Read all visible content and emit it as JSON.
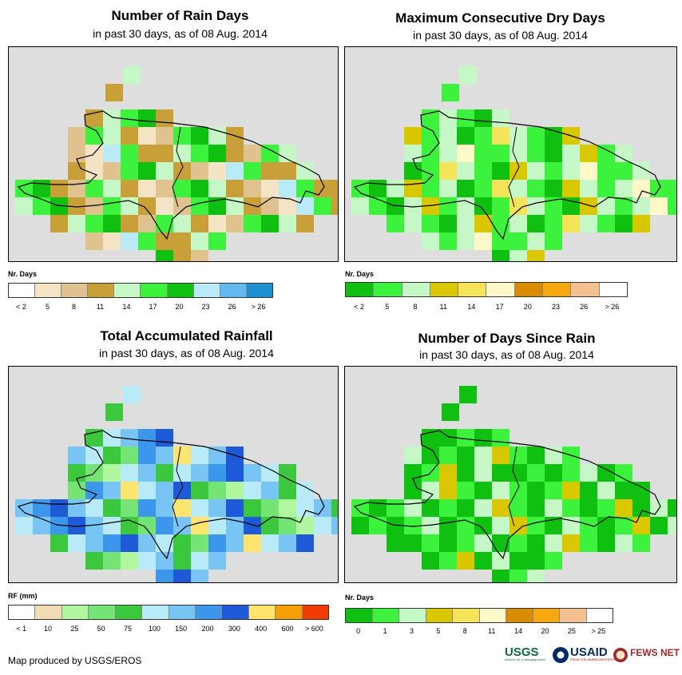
{
  "panels": [
    {
      "id": "rain-days",
      "title": "Number of Rain Days",
      "subtitle": "in past 30 days, as of 08 Aug. 2014",
      "legend_title": "Nr. Days",
      "legend_colors": [
        "#ffffff",
        "#f5e3c6",
        "#e0c28e",
        "#c9a038",
        "#c6f7c6",
        "#3df23d",
        "#10c010",
        "#b8ebf7",
        "#62b9f0",
        "#1e90d0"
      ],
      "legend_labels": [
        "< 2",
        "5",
        "8",
        "11",
        "14",
        "17",
        "20",
        "23",
        "26",
        "> 26"
      ]
    },
    {
      "id": "max-dry-days",
      "title": "Maximum Consecutive Dry Days",
      "subtitle": "in past 30 days, as of 08 Aug. 2014",
      "legend_title": "Nr. Days",
      "legend_colors": [
        "#10c010",
        "#3df23d",
        "#c6f7c6",
        "#d9c800",
        "#f5e35a",
        "#fff8c8",
        "#d98c00",
        "#f5a810",
        "#f5c090",
        "#ffffff"
      ],
      "legend_labels": [
        "< 2",
        "5",
        "8",
        "11",
        "14",
        "17",
        "20",
        "23",
        "26",
        "> 26"
      ]
    },
    {
      "id": "total-rainfall",
      "title": "Total Accumulated Rainfall",
      "subtitle": "in past 30 days, as of 08 Aug. 2014",
      "legend_title": "RF (mm)",
      "legend_colors": [
        "#ffffff",
        "#f0dcb4",
        "#b0f7a0",
        "#74e474",
        "#3cc83c",
        "#b8ebf7",
        "#78c4f5",
        "#3c96eb",
        "#1e5ad8",
        "#ffe46e",
        "#f5a000",
        "#f03c00"
      ],
      "legend_labels": [
        "< 1",
        "10",
        "25",
        "50",
        "75",
        "100",
        "150",
        "200",
        "300",
        "400",
        "600",
        "> 600"
      ]
    },
    {
      "id": "days-since-rain",
      "title": "Number of Days Since Rain",
      "subtitle": "in past 30 days, as of 08 Aug. 2014",
      "legend_title": "Nr. Days",
      "legend_colors": [
        "#10c010",
        "#3df23d",
        "#c6f7c6",
        "#d9c800",
        "#f5e35a",
        "#fff8c8",
        "#d98c00",
        "#f5a810",
        "#f5c090",
        "#ffffff"
      ],
      "legend_labels": [
        "0",
        "1",
        "3",
        "5",
        "8",
        "11",
        "14",
        "20",
        "25",
        "> 25"
      ]
    }
  ],
  "footer": "Map produced by USGS/EROS",
  "logos": {
    "usgs": "USGS",
    "usgs_tagline": "science for a changing world",
    "usaid": "USAID",
    "usaid_tagline": "FROM THE AMERICAN PEOPLE",
    "fews": "FEWS NET"
  }
}
